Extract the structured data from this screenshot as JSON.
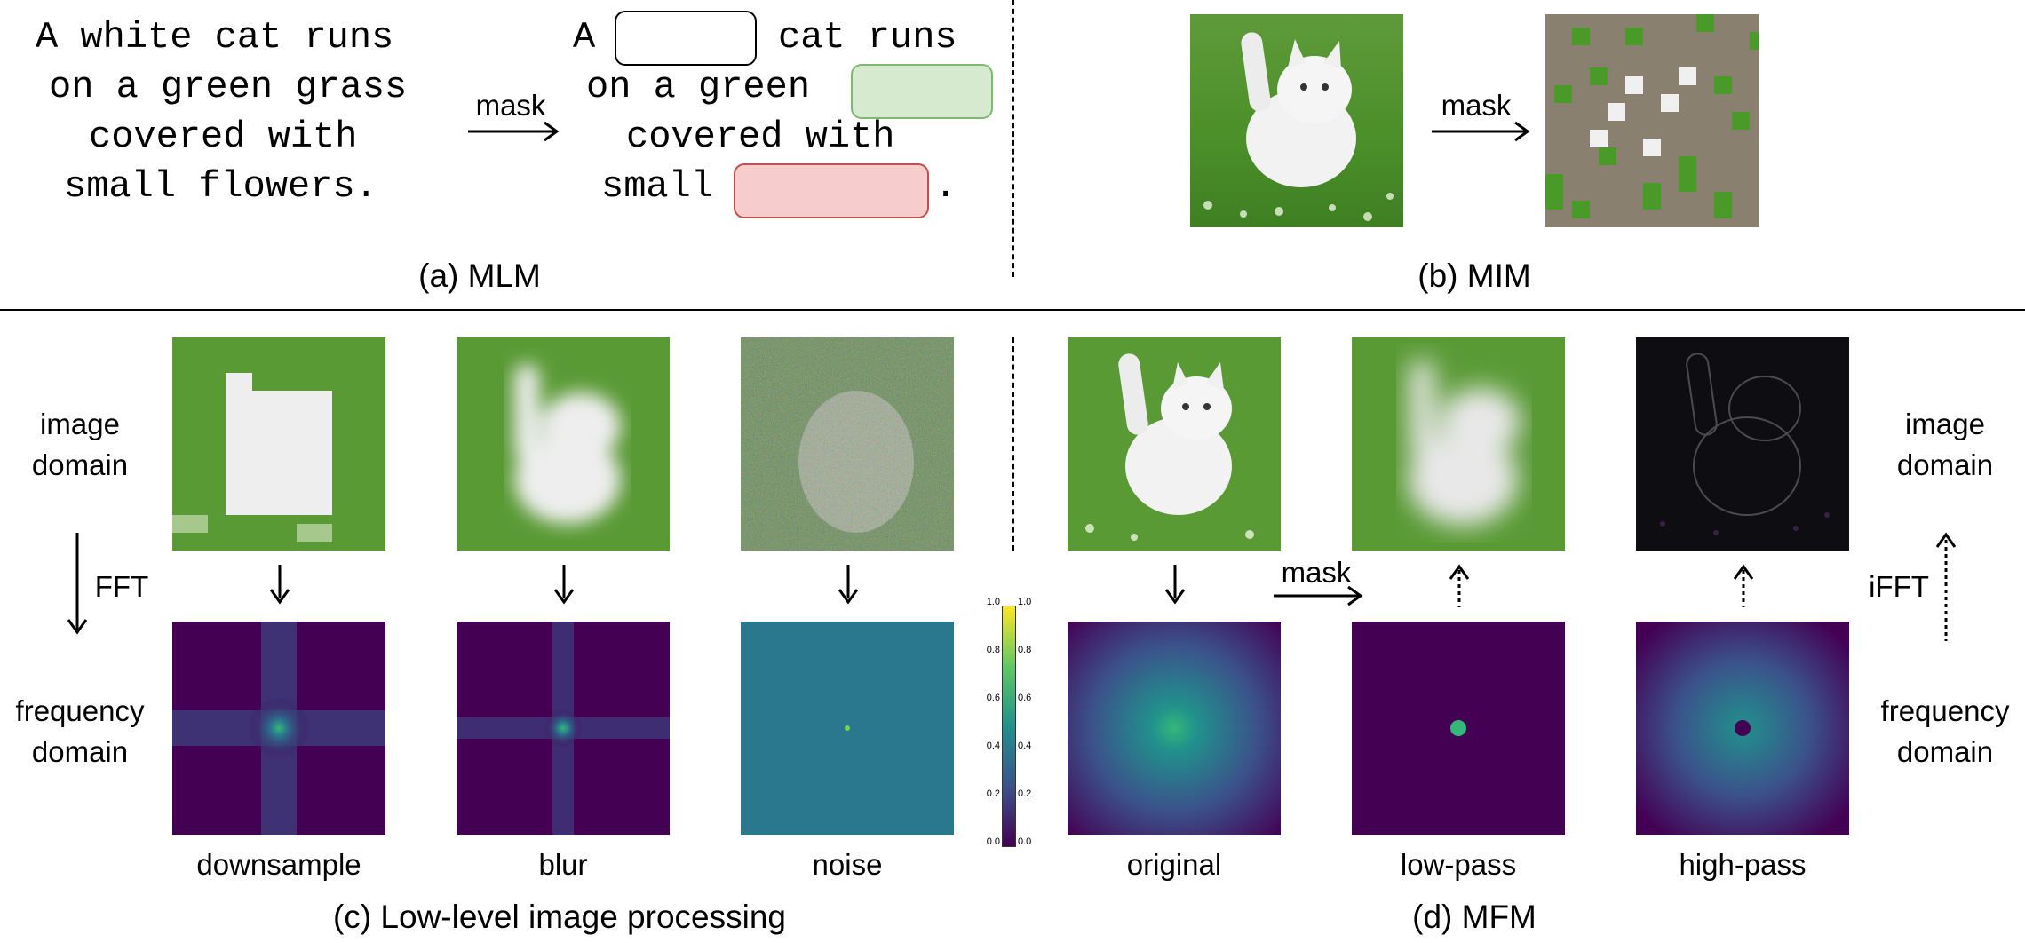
{
  "mlm": {
    "source_lines": [
      "A white cat runs",
      "on a green grass",
      "covered with",
      "small flowers."
    ],
    "masked": {
      "line1_pre": "A",
      "line1_post": "cat runs",
      "line2_pre": "on a green",
      "line3": "covered with",
      "line4_pre": "small",
      "line4_post": "."
    },
    "mask_label": "mask",
    "caption": "(a) MLM",
    "mask_colors": {
      "white": "#ffffff",
      "green": "#d6ead0",
      "red": "#f6cccc"
    }
  },
  "mim": {
    "mask_label": "mask",
    "caption": "(b) MIM",
    "patch_color": "#8a8070"
  },
  "low_level": {
    "image_domain": "image\ndomain",
    "frequency_domain": "frequency\ndomain",
    "fft_label": "FFT",
    "items": [
      "downsample",
      "blur",
      "noise"
    ],
    "caption": "(c) Low-level image processing",
    "colorbar_ticks": [
      "0.0",
      "0.2",
      "0.4",
      "0.6",
      "0.8",
      "1.0"
    ]
  },
  "mfm": {
    "items": [
      "original",
      "low-pass",
      "high-pass"
    ],
    "mask_label": "mask",
    "ifft_label": "iFFT",
    "image_domain": "image\ndomain",
    "frequency_domain": "frequency\ndomain",
    "caption": "(d) MFM"
  },
  "colors": {
    "viridis_dark": "#440154",
    "viridis_teal": "#2a788e",
    "viridis_green": "#35b779",
    "grass": "#4a9a2a"
  }
}
